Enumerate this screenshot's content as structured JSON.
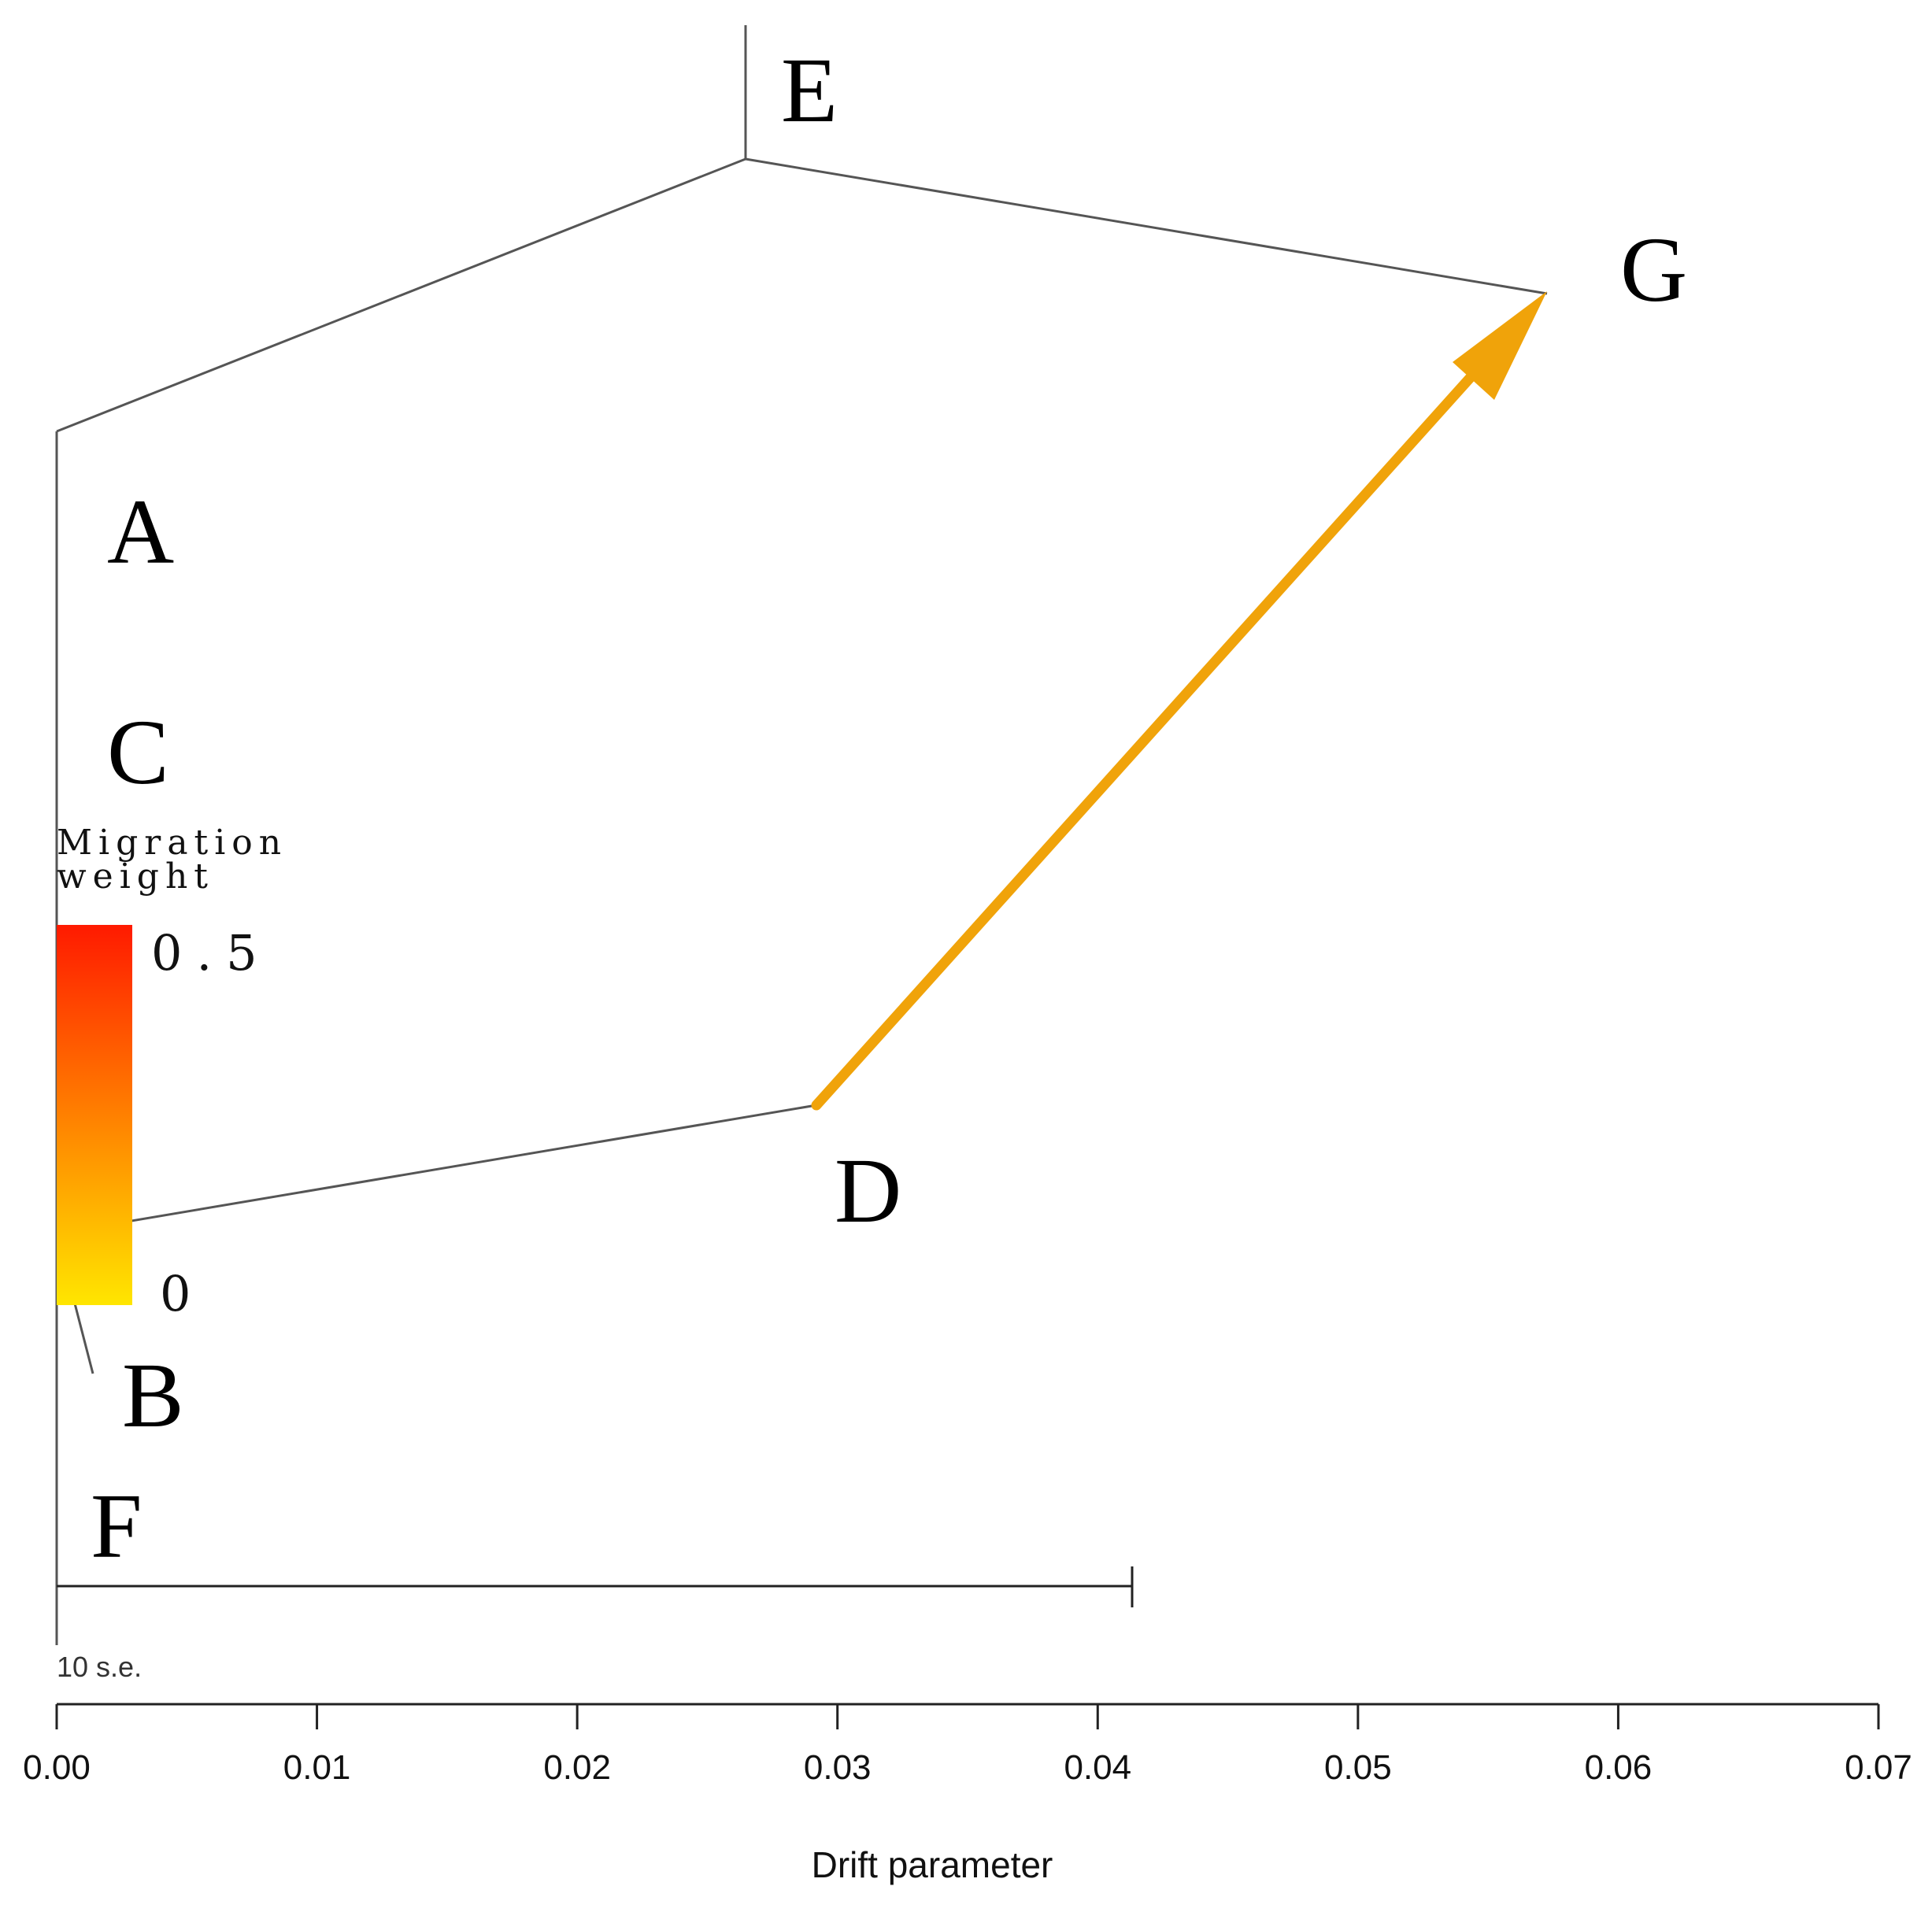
{
  "tree": {
    "nodes": [
      "A",
      "B",
      "C",
      "D",
      "E",
      "F",
      "G"
    ],
    "edges": [
      [
        "root",
        "E"
      ],
      [
        "root",
        "G"
      ],
      [
        "root",
        "A"
      ],
      [
        "root",
        "C"
      ],
      [
        "root",
        "D"
      ],
      [
        "root",
        "B"
      ],
      [
        "root",
        "F"
      ]
    ],
    "migration": {
      "from": "D",
      "to": "G",
      "color": "#f0a30a"
    }
  },
  "legend": {
    "title_line1": "Migration",
    "title_line2": "weight",
    "max_label": "0.5",
    "min_label": "0",
    "gradient_top": "#ff1a00",
    "gradient_bottom": "#ffe600"
  },
  "scale_bar": {
    "label": "10 s.e."
  },
  "axis": {
    "title": "Drift parameter",
    "ticks": [
      "0.00",
      "0.01",
      "0.02",
      "0.03",
      "0.04",
      "0.05",
      "0.06",
      "0.07"
    ]
  }
}
